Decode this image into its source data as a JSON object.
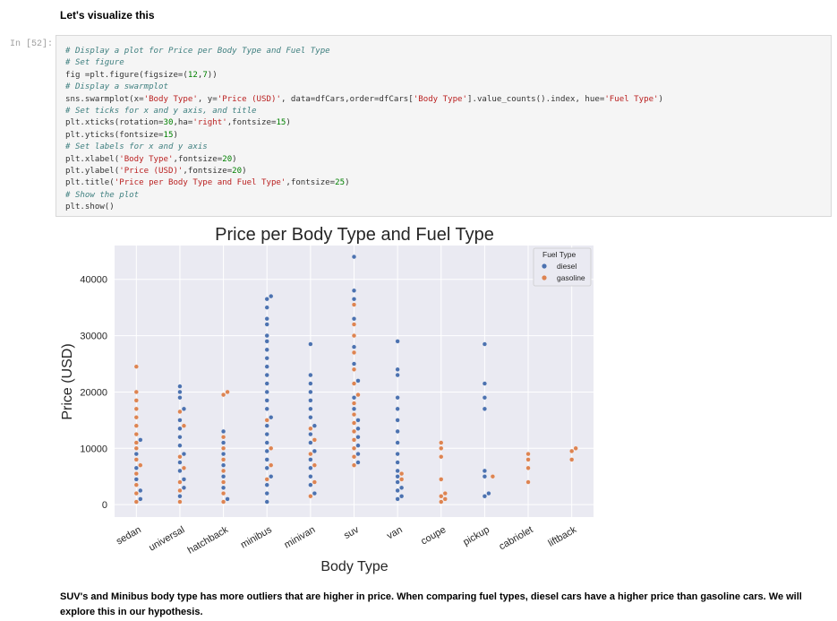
{
  "markdown_top": "Let's visualize this",
  "cell": {
    "prompt": "In [52]:",
    "code_lines": [
      "# Display a plot for Price per Body Type and Fuel Type",
      "# Set figure",
      "fig =plt.figure(figsize=(12,7))",
      "# Display a swarmplot",
      "sns.swarmplot(x='Body Type', y='Price (USD)', data=dfCars,order=dfCars['Body Type'].value_counts().index, hue='Fuel Type')",
      "# Set ticks for x and y axis, and title",
      "plt.xticks(rotation=30,ha='right',fontsize=15)",
      "plt.yticks(fontsize=15)",
      "# Set labels for x and y axis",
      "plt.xlabel('Body Type',fontsize=20)",
      "plt.ylabel('Price (USD)',fontsize=20)",
      "plt.title('Price per Body Type and Fuel Type',fontsize=25)",
      "# Show the plot",
      "plt.show()"
    ]
  },
  "chart_data": {
    "type": "scatter",
    "subtype": "swarm",
    "title": "Price per Body Type and Fuel Type",
    "xlabel": "Body Type",
    "ylabel": "Price (USD)",
    "categories": [
      "sedan",
      "universal",
      "hatchback",
      "minibus",
      "minivan",
      "suv",
      "van",
      "coupe",
      "pickup",
      "cabriolet",
      "liftback"
    ],
    "yticks": [
      0,
      10000,
      20000,
      30000,
      40000
    ],
    "ylim": [
      -2200,
      46000
    ],
    "grid": true,
    "background": "#eaeaf2",
    "legend": {
      "title": "Fuel Type",
      "placement": "top-right",
      "entries": [
        "diesel",
        "gasoline"
      ]
    },
    "colors": {
      "diesel": "#4c72b0",
      "gasoline": "#dd8452"
    },
    "series": [
      {
        "name": "diesel",
        "points": [
          {
            "category": "sedan",
            "y": 11500
          },
          {
            "category": "sedan",
            "y": 9000
          },
          {
            "category": "sedan",
            "y": 6500
          },
          {
            "category": "sedan",
            "y": 4500
          },
          {
            "category": "sedan",
            "y": 2500
          },
          {
            "category": "sedan",
            "y": 1000
          },
          {
            "category": "universal",
            "y": 21000
          },
          {
            "category": "universal",
            "y": 20000
          },
          {
            "category": "universal",
            "y": 19000
          },
          {
            "category": "universal",
            "y": 17000
          },
          {
            "category": "universal",
            "y": 15000
          },
          {
            "category": "universal",
            "y": 13500
          },
          {
            "category": "universal",
            "y": 12000
          },
          {
            "category": "universal",
            "y": 10500
          },
          {
            "category": "universal",
            "y": 9000
          },
          {
            "category": "universal",
            "y": 7500
          },
          {
            "category": "universal",
            "y": 6000
          },
          {
            "category": "universal",
            "y": 4500
          },
          {
            "category": "universal",
            "y": 3000
          },
          {
            "category": "universal",
            "y": 1500
          },
          {
            "category": "hatchback",
            "y": 13000
          },
          {
            "category": "hatchback",
            "y": 11000
          },
          {
            "category": "hatchback",
            "y": 9000
          },
          {
            "category": "hatchback",
            "y": 7000
          },
          {
            "category": "hatchback",
            "y": 5000
          },
          {
            "category": "hatchback",
            "y": 3000
          },
          {
            "category": "hatchback",
            "y": 1000
          },
          {
            "category": "minibus",
            "y": 37000
          },
          {
            "category": "minibus",
            "y": 36500
          },
          {
            "category": "minibus",
            "y": 35000
          },
          {
            "category": "minibus",
            "y": 33000
          },
          {
            "category": "minibus",
            "y": 32000
          },
          {
            "category": "minibus",
            "y": 30000
          },
          {
            "category": "minibus",
            "y": 29000
          },
          {
            "category": "minibus",
            "y": 27500
          },
          {
            "category": "minibus",
            "y": 26000
          },
          {
            "category": "minibus",
            "y": 24500
          },
          {
            "category": "minibus",
            "y": 23000
          },
          {
            "category": "minibus",
            "y": 21500
          },
          {
            "category": "minibus",
            "y": 20000
          },
          {
            "category": "minibus",
            "y": 18500
          },
          {
            "category": "minibus",
            "y": 17000
          },
          {
            "category": "minibus",
            "y": 15500
          },
          {
            "category": "minibus",
            "y": 14000
          },
          {
            "category": "minibus",
            "y": 12500
          },
          {
            "category": "minibus",
            "y": 11000
          },
          {
            "category": "minibus",
            "y": 9500
          },
          {
            "category": "minibus",
            "y": 8000
          },
          {
            "category": "minibus",
            "y": 6500
          },
          {
            "category": "minibus",
            "y": 5000
          },
          {
            "category": "minibus",
            "y": 3500
          },
          {
            "category": "minibus",
            "y": 2000
          },
          {
            "category": "minibus",
            "y": 500
          },
          {
            "category": "minivan",
            "y": 28500
          },
          {
            "category": "minivan",
            "y": 23000
          },
          {
            "category": "minivan",
            "y": 21500
          },
          {
            "category": "minivan",
            "y": 20000
          },
          {
            "category": "minivan",
            "y": 18500
          },
          {
            "category": "minivan",
            "y": 17000
          },
          {
            "category": "minivan",
            "y": 15500
          },
          {
            "category": "minivan",
            "y": 14000
          },
          {
            "category": "minivan",
            "y": 12500
          },
          {
            "category": "minivan",
            "y": 11000
          },
          {
            "category": "minivan",
            "y": 9500
          },
          {
            "category": "minivan",
            "y": 8000
          },
          {
            "category": "minivan",
            "y": 6500
          },
          {
            "category": "minivan",
            "y": 5000
          },
          {
            "category": "minivan",
            "y": 3500
          },
          {
            "category": "minivan",
            "y": 2000
          },
          {
            "category": "suv",
            "y": 44000
          },
          {
            "category": "suv",
            "y": 38000
          },
          {
            "category": "suv",
            "y": 36500
          },
          {
            "category": "suv",
            "y": 33000
          },
          {
            "category": "suv",
            "y": 28000
          },
          {
            "category": "suv",
            "y": 25000
          },
          {
            "category": "suv",
            "y": 22000
          },
          {
            "category": "suv",
            "y": 19000
          },
          {
            "category": "suv",
            "y": 17000
          },
          {
            "category": "suv",
            "y": 15000
          },
          {
            "category": "suv",
            "y": 13500
          },
          {
            "category": "suv",
            "y": 12000
          },
          {
            "category": "suv",
            "y": 10500
          },
          {
            "category": "suv",
            "y": 9000
          },
          {
            "category": "suv",
            "y": 7500
          },
          {
            "category": "van",
            "y": 29000
          },
          {
            "category": "van",
            "y": 24000
          },
          {
            "category": "van",
            "y": 23000
          },
          {
            "category": "van",
            "y": 19000
          },
          {
            "category": "van",
            "y": 17000
          },
          {
            "category": "van",
            "y": 15000
          },
          {
            "category": "van",
            "y": 13000
          },
          {
            "category": "van",
            "y": 11000
          },
          {
            "category": "van",
            "y": 9000
          },
          {
            "category": "van",
            "y": 7500
          },
          {
            "category": "van",
            "y": 6000
          },
          {
            "category": "van",
            "y": 5000
          },
          {
            "category": "van",
            "y": 4000
          },
          {
            "category": "van",
            "y": 3000
          },
          {
            "category": "van",
            "y": 2500
          },
          {
            "category": "van",
            "y": 1500
          },
          {
            "category": "van",
            "y": 1000
          },
          {
            "category": "pickup",
            "y": 28500
          },
          {
            "category": "pickup",
            "y": 21500
          },
          {
            "category": "pickup",
            "y": 19000
          },
          {
            "category": "pickup",
            "y": 17000
          },
          {
            "category": "pickup",
            "y": 6000
          },
          {
            "category": "pickup",
            "y": 5000
          },
          {
            "category": "pickup",
            "y": 2000
          },
          {
            "category": "pickup",
            "y": 1500
          }
        ]
      },
      {
        "name": "gasoline",
        "points": [
          {
            "category": "sedan",
            "y": 24500
          },
          {
            "category": "sedan",
            "y": 20000
          },
          {
            "category": "sedan",
            "y": 18500
          },
          {
            "category": "sedan",
            "y": 17000
          },
          {
            "category": "sedan",
            "y": 15500
          },
          {
            "category": "sedan",
            "y": 14000
          },
          {
            "category": "sedan",
            "y": 12500
          },
          {
            "category": "sedan",
            "y": 11000
          },
          {
            "category": "sedan",
            "y": 10000
          },
          {
            "category": "sedan",
            "y": 8000
          },
          {
            "category": "sedan",
            "y": 7000
          },
          {
            "category": "sedan",
            "y": 5500
          },
          {
            "category": "sedan",
            "y": 3500
          },
          {
            "category": "sedan",
            "y": 2000
          },
          {
            "category": "sedan",
            "y": 500
          },
          {
            "category": "universal",
            "y": 16500
          },
          {
            "category": "universal",
            "y": 14000
          },
          {
            "category": "universal",
            "y": 8500
          },
          {
            "category": "universal",
            "y": 6500
          },
          {
            "category": "universal",
            "y": 4000
          },
          {
            "category": "universal",
            "y": 2500
          },
          {
            "category": "universal",
            "y": 500
          },
          {
            "category": "hatchback",
            "y": 20000
          },
          {
            "category": "hatchback",
            "y": 19500
          },
          {
            "category": "hatchback",
            "y": 12000
          },
          {
            "category": "hatchback",
            "y": 10000
          },
          {
            "category": "hatchback",
            "y": 8000
          },
          {
            "category": "hatchback",
            "y": 6000
          },
          {
            "category": "hatchback",
            "y": 4000
          },
          {
            "category": "hatchback",
            "y": 2000
          },
          {
            "category": "hatchback",
            "y": 500
          },
          {
            "category": "minibus",
            "y": 15000
          },
          {
            "category": "minibus",
            "y": 10000
          },
          {
            "category": "minibus",
            "y": 7000
          },
          {
            "category": "minibus",
            "y": 4500
          },
          {
            "category": "minivan",
            "y": 13500
          },
          {
            "category": "minivan",
            "y": 11500
          },
          {
            "category": "minivan",
            "y": 9000
          },
          {
            "category": "minivan",
            "y": 7000
          },
          {
            "category": "minivan",
            "y": 4000
          },
          {
            "category": "minivan",
            "y": 1500
          },
          {
            "category": "suv",
            "y": 35500
          },
          {
            "category": "suv",
            "y": 32000
          },
          {
            "category": "suv",
            "y": 30000
          },
          {
            "category": "suv",
            "y": 27000
          },
          {
            "category": "suv",
            "y": 24000
          },
          {
            "category": "suv",
            "y": 21500
          },
          {
            "category": "suv",
            "y": 19500
          },
          {
            "category": "suv",
            "y": 18000
          },
          {
            "category": "suv",
            "y": 16000
          },
          {
            "category": "suv",
            "y": 14500
          },
          {
            "category": "suv",
            "y": 13000
          },
          {
            "category": "suv",
            "y": 11500
          },
          {
            "category": "suv",
            "y": 10000
          },
          {
            "category": "suv",
            "y": 8500
          },
          {
            "category": "suv",
            "y": 7000
          },
          {
            "category": "van",
            "y": 5500
          },
          {
            "category": "van",
            "y": 4500
          },
          {
            "category": "coupe",
            "y": 11000
          },
          {
            "category": "coupe",
            "y": 10000
          },
          {
            "category": "coupe",
            "y": 8500
          },
          {
            "category": "coupe",
            "y": 4500
          },
          {
            "category": "coupe",
            "y": 2000
          },
          {
            "category": "coupe",
            "y": 1500
          },
          {
            "category": "coupe",
            "y": 1000
          },
          {
            "category": "coupe",
            "y": 500
          },
          {
            "category": "pickup",
            "y": 5000
          },
          {
            "category": "cabriolet",
            "y": 9000
          },
          {
            "category": "cabriolet",
            "y": 8000
          },
          {
            "category": "cabriolet",
            "y": 6500
          },
          {
            "category": "cabriolet",
            "y": 4000
          },
          {
            "category": "liftback",
            "y": 10000
          },
          {
            "category": "liftback",
            "y": 9500
          },
          {
            "category": "liftback",
            "y": 8000
          }
        ]
      }
    ]
  },
  "markdown_bottom": "SUV's and Minibus body type has more outliers that are higher in price. When comparing fuel types, diesel cars have a higher price than gasoline cars. We will explore this in our hypothesis."
}
